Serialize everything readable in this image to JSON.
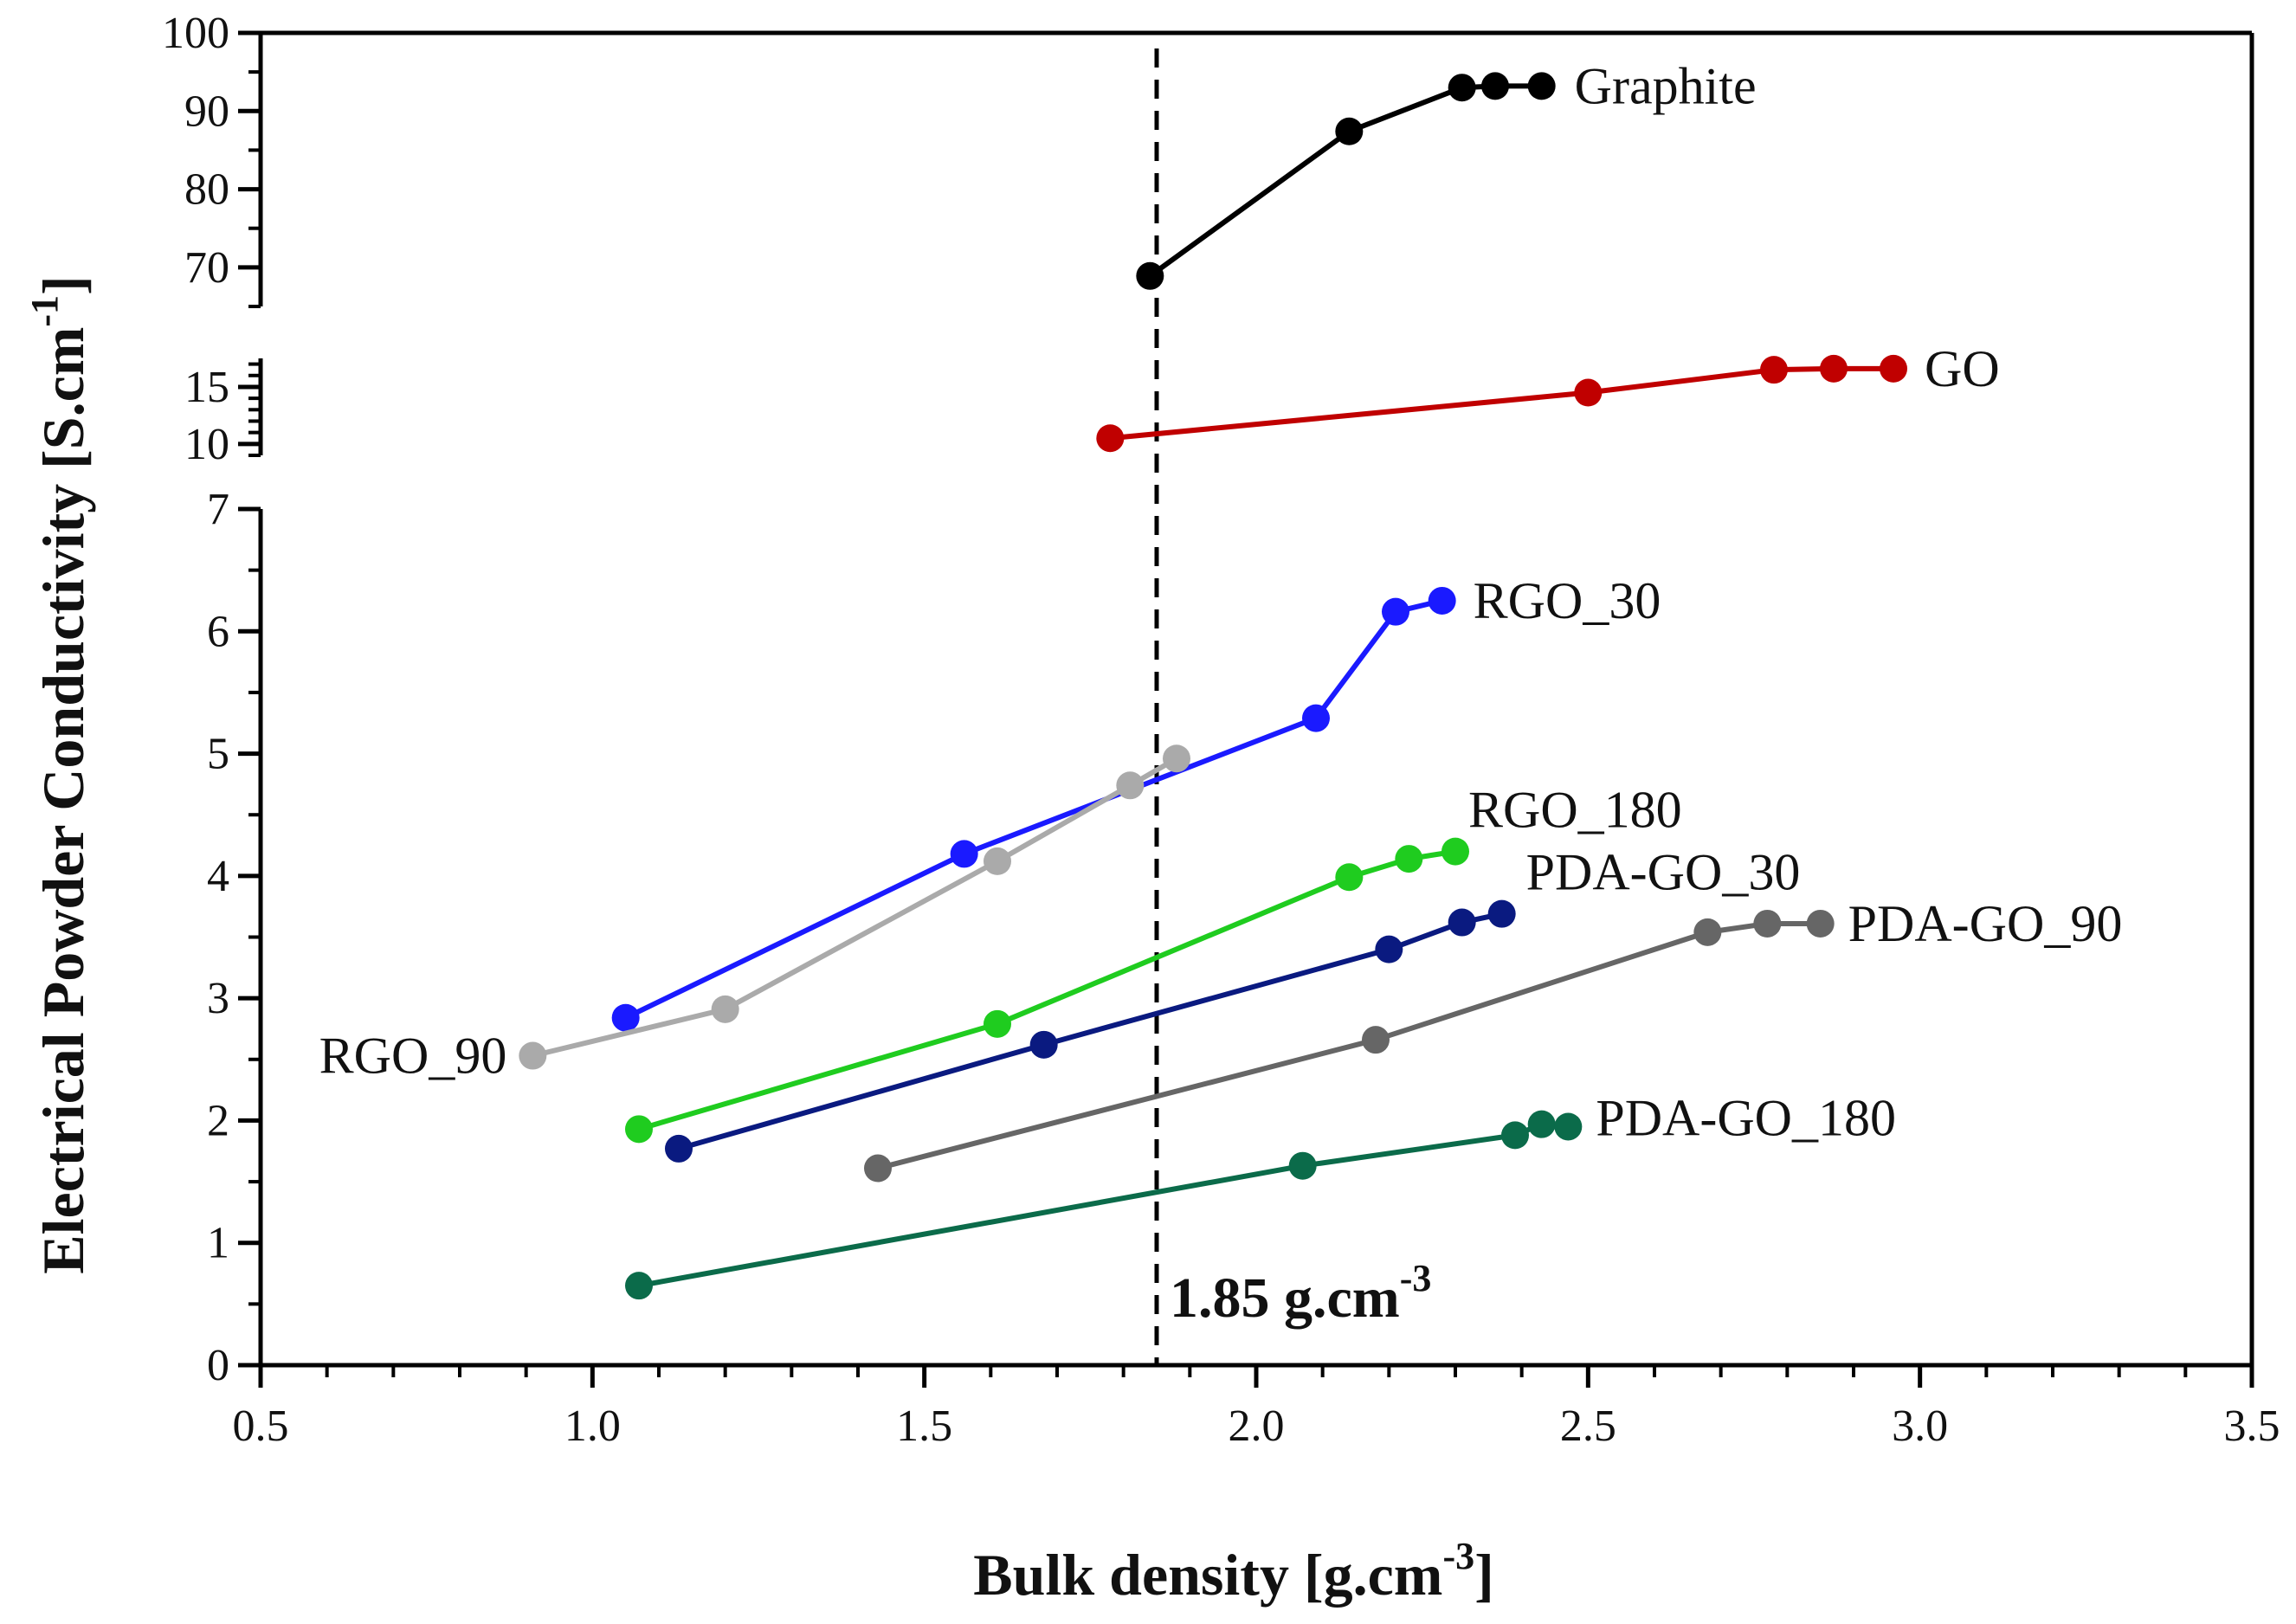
{
  "chart_data": {
    "type": "line",
    "xlabel": "Bulk density [g.cm",
    "xlabel_sup": "-3",
    "xlabel_end": "]",
    "ylabel": "Electrical Powder Conductivity [S.cm",
    "ylabel_sup": "-1",
    "ylabel_end": "]",
    "xlim": [
      0.5,
      3.5
    ],
    "x_ticks": [
      0.5,
      1.0,
      1.5,
      2.0,
      2.5,
      3.0,
      3.5
    ],
    "x_tick_labels": [
      "0.5",
      "1.0",
      "1.5",
      "2.0",
      "2.5",
      "3.0",
      "3.5"
    ],
    "y_axis_segments": [
      {
        "range": [
          0,
          7
        ],
        "ticks": [
          0,
          1,
          2,
          3,
          4,
          5,
          6,
          7
        ],
        "tick_labels": [
          "0",
          "1",
          "2",
          "3",
          "4",
          "5",
          "6",
          "7"
        ]
      },
      {
        "range": [
          9,
          17.5
        ],
        "ticks": [
          10,
          15
        ],
        "tick_labels": [
          "10",
          "15"
        ]
      },
      {
        "range": [
          65,
          100
        ],
        "ticks": [
          70,
          80,
          90,
          100
        ],
        "tick_labels": [
          "70",
          "80",
          "90",
          "100"
        ]
      }
    ],
    "reference_line": {
      "x": 1.85,
      "label": "1.85 g.cm",
      "label_sup": "-3"
    },
    "series": [
      {
        "name": "Graphite",
        "color": "#000000",
        "x": [
          1.84,
          2.14,
          2.31,
          2.36,
          2.43
        ],
        "y": [
          68.9,
          87.4,
          93.0,
          93.2,
          93.2
        ]
      },
      {
        "name": "GO",
        "color": "#c00000",
        "x": [
          1.78,
          2.5,
          2.78,
          2.87,
          2.96
        ],
        "y": [
          10.5,
          14.5,
          16.5,
          16.6,
          16.6
        ]
      },
      {
        "name": "RGO_30",
        "color": "#1a1aff",
        "x": [
          1.05,
          1.56,
          2.09,
          2.21,
          2.28
        ],
        "y": [
          2.84,
          4.18,
          5.29,
          6.16,
          6.25
        ]
      },
      {
        "name": "RGO_90",
        "color": "#aaaaaa",
        "x": [
          0.91,
          1.2,
          1.61,
          1.81,
          1.88
        ],
        "y": [
          2.53,
          2.91,
          4.12,
          4.74,
          4.96
        ]
      },
      {
        "name": "RGO_180",
        "color": "#1fcc1f",
        "x": [
          1.07,
          1.61,
          2.14,
          2.23,
          2.3
        ],
        "y": [
          1.93,
          2.79,
          3.99,
          4.14,
          4.2
        ]
      },
      {
        "name": "PDA-GO_30",
        "color": "#0a1a80",
        "x": [
          1.13,
          1.68,
          2.2,
          2.31,
          2.37
        ],
        "y": [
          1.77,
          2.62,
          3.4,
          3.62,
          3.69
        ]
      },
      {
        "name": "PDA-GO_90",
        "color": "#666666",
        "x": [
          1.43,
          2.18,
          2.68,
          2.77,
          2.85
        ],
        "y": [
          1.61,
          2.66,
          3.54,
          3.61,
          3.61
        ]
      },
      {
        "name": "PDA-GO_180",
        "color": "#0b6b4a",
        "x": [
          1.07,
          2.07,
          2.39,
          2.43,
          2.47
        ],
        "y": [
          0.65,
          1.63,
          1.88,
          1.97,
          1.95
        ]
      }
    ]
  }
}
